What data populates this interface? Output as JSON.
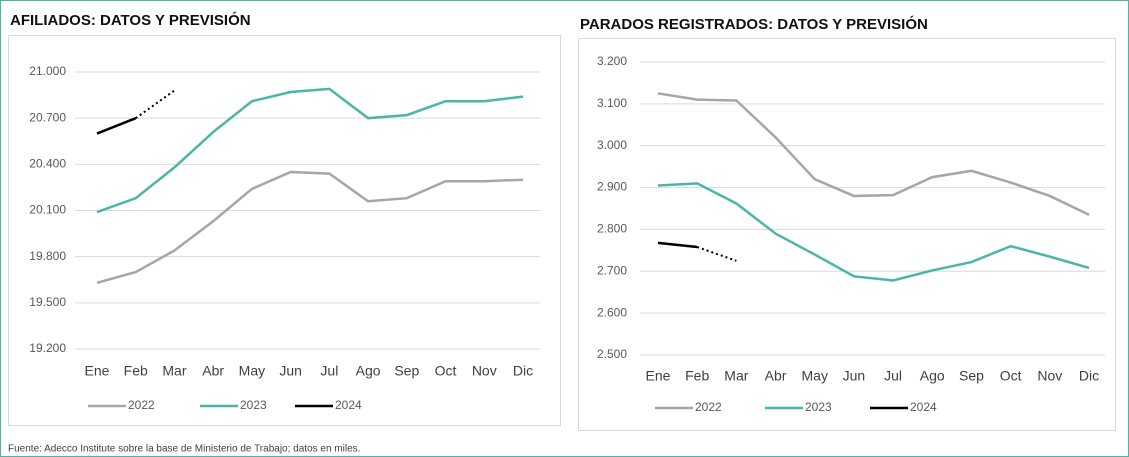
{
  "chart_data": [
    {
      "type": "line",
      "title": "AFILIADOS: DATOS Y PREVISIÓN",
      "categories": [
        "Ene",
        "Feb",
        "Mar",
        "Abr",
        "May",
        "Jun",
        "Jul",
        "Ago",
        "Sep",
        "Oct",
        "Nov",
        "Dic"
      ],
      "ylim": [
        19200,
        21000
      ],
      "yticks": [
        {
          "value": 19200,
          "label": "19.200"
        },
        {
          "value": 19500,
          "label": "19.500"
        },
        {
          "value": 19800,
          "label": "19.800"
        },
        {
          "value": 20100,
          "label": "20.100"
        },
        {
          "value": 20400,
          "label": "20.400"
        },
        {
          "value": 20700,
          "label": "20.700"
        },
        {
          "value": 21000,
          "label": "21.000"
        }
      ],
      "grid": true,
      "series": [
        {
          "name": "2022",
          "color": "#a6a6a6",
          "values": [
            19630,
            19700,
            19840,
            20030,
            20240,
            20350,
            20340,
            20160,
            20180,
            20290,
            20290,
            20300
          ]
        },
        {
          "name": "2023",
          "color": "#4bb5a8",
          "values": [
            20090,
            20180,
            20380,
            20610,
            20810,
            20870,
            20890,
            20700,
            20720,
            20810,
            20810,
            20840
          ]
        },
        {
          "name": "2024",
          "color": "#000000",
          "values": [
            20600,
            20700,
            20880,
            null,
            null,
            null,
            null,
            null,
            null,
            null,
            null,
            null
          ],
          "dash_after": 1
        }
      ]
    },
    {
      "type": "line",
      "title": "PARADOS REGISTRADOS: DATOS Y PREVISIÓN",
      "categories": [
        "Ene",
        "Feb",
        "Mar",
        "Abr",
        "May",
        "Jun",
        "Jul",
        "Ago",
        "Sep",
        "Oct",
        "Nov",
        "Dic"
      ],
      "ylim": [
        2500,
        3200
      ],
      "yticks": [
        {
          "value": 2500,
          "label": "2.500"
        },
        {
          "value": 2600,
          "label": "2.600"
        },
        {
          "value": 2700,
          "label": "2.700"
        },
        {
          "value": 2800,
          "label": "2.800"
        },
        {
          "value": 2900,
          "label": "2.900"
        },
        {
          "value": 3000,
          "label": "3.000"
        },
        {
          "value": 3100,
          "label": "3.100"
        },
        {
          "value": 3200,
          "label": "3.200"
        }
      ],
      "grid": true,
      "series": [
        {
          "name": "2022",
          "color": "#a6a6a6",
          "values": [
            3125,
            3110,
            3108,
            3020,
            2920,
            2880,
            2882,
            2925,
            2940,
            2912,
            2880,
            2835
          ]
        },
        {
          "name": "2023",
          "color": "#4bb5a8",
          "values": [
            2905,
            2910,
            2862,
            2790,
            2740,
            2688,
            2678,
            2702,
            2722,
            2760,
            2735,
            2708
          ]
        },
        {
          "name": "2024",
          "color": "#000000",
          "values": [
            2768,
            2758,
            2725,
            null,
            null,
            null,
            null,
            null,
            null,
            null,
            null,
            null
          ],
          "dash_after": 1
        }
      ]
    }
  ],
  "footer": "Fuente: Adecco Institute sobre la base de Ministerio de Trabajo; datos en miles."
}
